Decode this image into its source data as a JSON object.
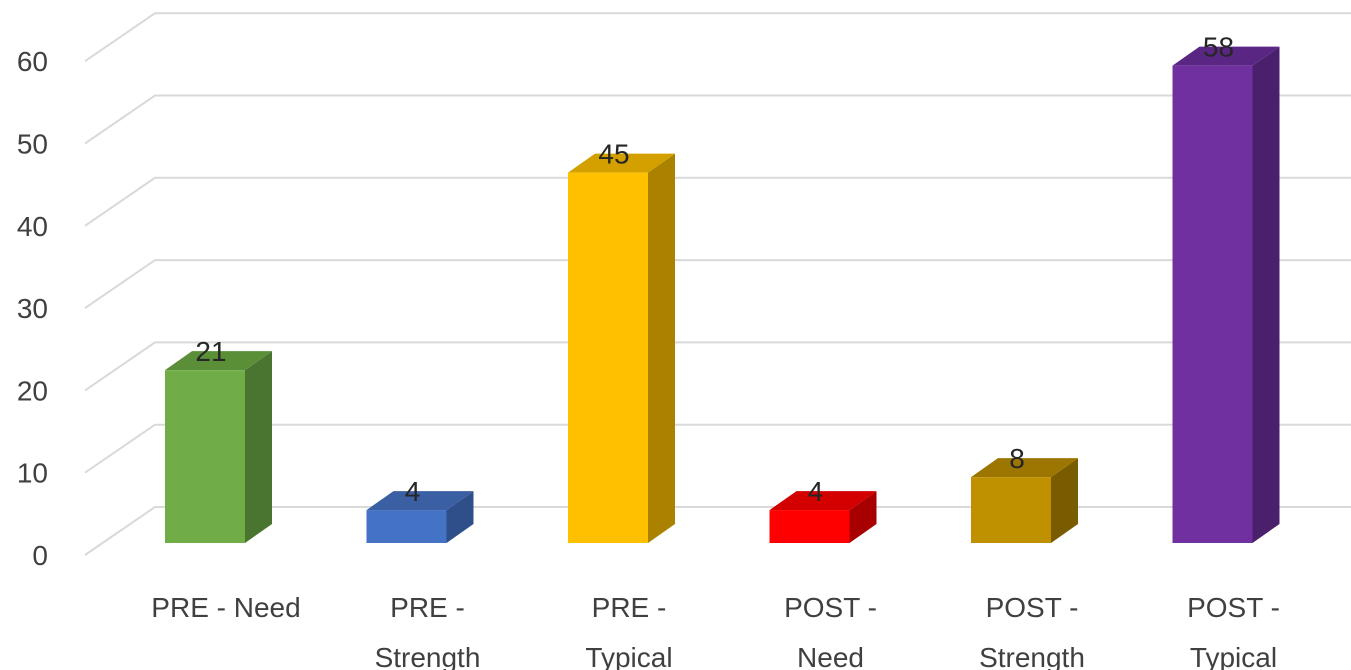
{
  "chart_data": {
    "type": "bar",
    "style": "3d-column",
    "categories": [
      [
        "PRE - Need"
      ],
      [
        "PRE -",
        "Strength"
      ],
      [
        "PRE -",
        "Typical"
      ],
      [
        "POST -",
        "Need"
      ],
      [
        "POST -",
        "Strength"
      ],
      [
        "POST -",
        "Typical"
      ]
    ],
    "values": [
      21,
      4,
      45,
      4,
      8,
      58
    ],
    "bar_colors": [
      {
        "front": "#70ad47",
        "top": "#5a8f38",
        "side": "#4a7530"
      },
      {
        "front": "#4472c4",
        "top": "#3a5fa3",
        "side": "#2f4f8a"
      },
      {
        "front": "#ffc000",
        "top": "#d4a000",
        "side": "#ab8200"
      },
      {
        "front": "#ff0000",
        "top": "#d40000",
        "side": "#a80000"
      },
      {
        "front": "#bf9000",
        "top": "#9c7600",
        "side": "#7a5c00"
      },
      {
        "front": "#7030a0",
        "top": "#5a2684",
        "side": "#4a1f6b"
      }
    ],
    "ylim": [
      0,
      60
    ],
    "yticks": [
      0,
      10,
      20,
      30,
      40,
      50,
      60
    ],
    "grid": true,
    "legend": "none",
    "title": "",
    "xlabel": "",
    "ylabel": ""
  }
}
